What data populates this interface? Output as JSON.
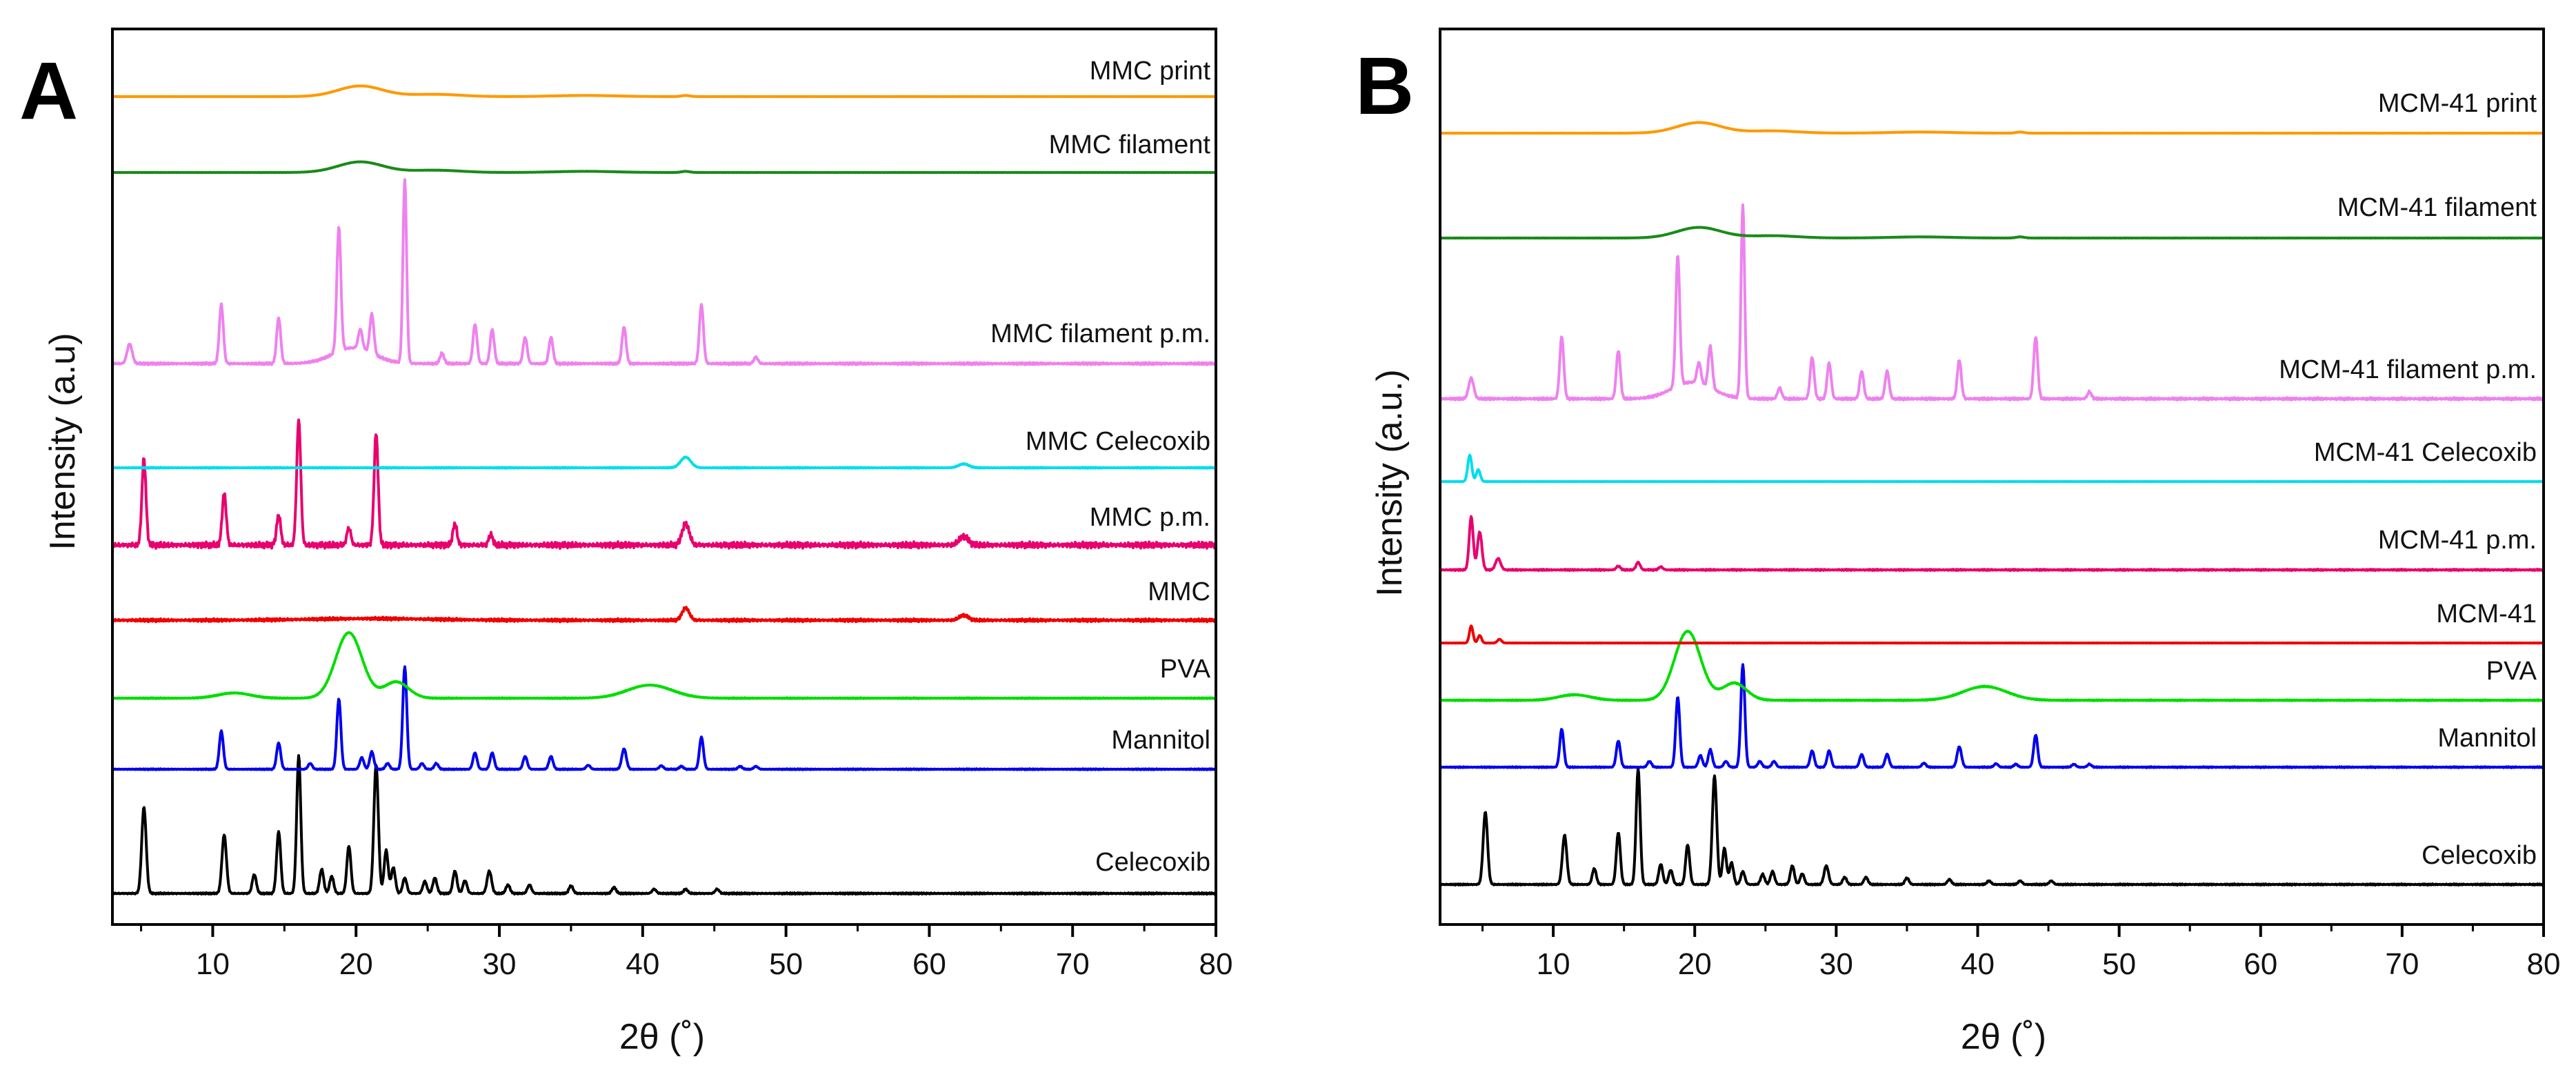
{
  "chart_data": [
    {
      "type": "line",
      "panel_label": "A",
      "xlabel": "2θ (˚)",
      "ylabel": "Intensity (a.u)",
      "xlim": [
        3,
        80
      ],
      "x_ticks": [
        "10",
        "20",
        "30",
        "40",
        "50",
        "60",
        "70",
        "80"
      ],
      "grid": false,
      "series": [
        {
          "name": "Celecoxib",
          "color": "#000000",
          "shape": "celecoxib"
        },
        {
          "name": "Mannitol",
          "color": "#0000ee",
          "shape": "mannitol"
        },
        {
          "name": "PVA",
          "color": "#00dd00",
          "shape": "pva"
        },
        {
          "name": "MMC",
          "color": "#ee0000",
          "shape": "silica"
        },
        {
          "name": "MMC p.m.",
          "color": "#e8006e",
          "shape": "silica_pm"
        },
        {
          "name": "MMC Celecoxib",
          "color": "#00ddee",
          "shape": "silica_api"
        },
        {
          "name": "MMC filament p.m.",
          "color": "#ee82ee",
          "shape": "filament_pm"
        },
        {
          "name": "MMC filament",
          "color": "#1a8a1a",
          "shape": "amorphous"
        },
        {
          "name": "MMC print",
          "color": "#ff9900",
          "shape": "amorphous"
        }
      ]
    },
    {
      "type": "line",
      "panel_label": "B",
      "xlabel": "2θ (˚)",
      "ylabel": "Intensity (a.u.)",
      "xlim": [
        2,
        80
      ],
      "x_ticks": [
        "10",
        "20",
        "30",
        "40",
        "50",
        "60",
        "70",
        "80"
      ],
      "grid": false,
      "series": [
        {
          "name": "Celecoxib",
          "color": "#000000",
          "shape": "celecoxib"
        },
        {
          "name": "Mannitol",
          "color": "#0000ee",
          "shape": "mannitol"
        },
        {
          "name": "PVA",
          "color": "#00dd00",
          "shape": "pva"
        },
        {
          "name": "MCM-41",
          "color": "#ee0000",
          "shape": "mcm"
        },
        {
          "name": "MCM-41 p.m.",
          "color": "#e8006e",
          "shape": "mcm_pm"
        },
        {
          "name": "MCM-41 Celecoxib",
          "color": "#00ddee",
          "shape": "mcm_api"
        },
        {
          "name": "MCM-41 filament p.m.",
          "color": "#ee82ee",
          "shape": "filament_pm"
        },
        {
          "name": "MCM-41 filament",
          "color": "#1a8a1a",
          "shape": "amorphous"
        },
        {
          "name": "MCM-41 print",
          "color": "#ff9900",
          "shape": "amorphous"
        }
      ]
    }
  ]
}
